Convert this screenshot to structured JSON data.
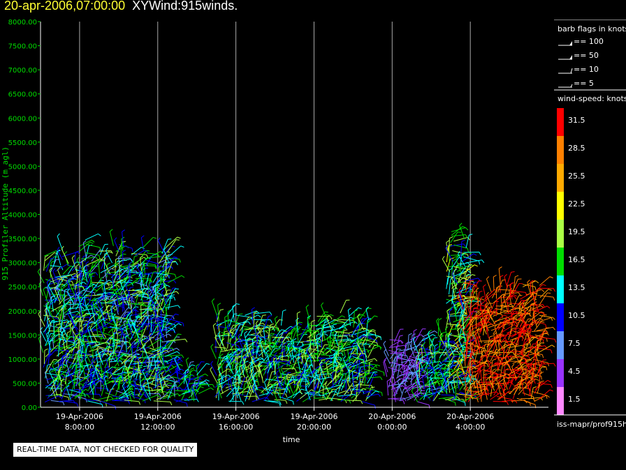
{
  "header": {
    "datetime": "20-apr-2006,07:00:00",
    "title": "XYWind:915winds."
  },
  "disclaimer": "REAL-TIME DATA, NOT CHECKED FOR QUALITY",
  "legend": {
    "barb_title": "barb flags in knots",
    "barbs": [
      {
        "label": "== 100",
        "value": 100
      },
      {
        "label": "== 50",
        "value": 50
      },
      {
        "label": "== 10",
        "value": 10
      },
      {
        "label": "== 5",
        "value": 5
      }
    ],
    "speed_title": "wind-speed: knots",
    "speed_bins": [
      {
        "label": "31.5",
        "color": "#ff0000"
      },
      {
        "label": "28.5",
        "color": "#ff8000"
      },
      {
        "label": "25.5",
        "color": "#ffaa00"
      },
      {
        "label": "22.5",
        "color": "#ffff00"
      },
      {
        "label": "19.5",
        "color": "#aaff44"
      },
      {
        "label": "16.5",
        "color": "#00dd00"
      },
      {
        "label": "13.5",
        "color": "#00ffff"
      },
      {
        "label": "10.5",
        "color": "#0000ff"
      },
      {
        "label": "7.5",
        "color": "#6699ff"
      },
      {
        "label": "4.5",
        "color": "#9933ff"
      },
      {
        "label": "1.5",
        "color": "#ff88ff"
      }
    ],
    "source": "iss-mapr/prof915h"
  },
  "chart_data": {
    "type": "scatter",
    "subtype": "wind-barb time-height",
    "title": "XYWind:915winds.",
    "xlabel": "time",
    "ylabel": "915 Profiler Altitude (m agl)",
    "ylim": [
      0,
      8000
    ],
    "xlim_hours_since_19apr_0600": [
      0,
      26.0
    ],
    "yticks": [
      "0.00",
      "500.00",
      "1000.00",
      "1500.00",
      "2000.00",
      "2500.00",
      "3000.00",
      "3500.00",
      "4000.00",
      "4500.00",
      "5000.00",
      "5500.00",
      "6000.00",
      "6500.00",
      "7000.00",
      "7500.00",
      "8000.00"
    ],
    "xticks": [
      {
        "line1": "19-Apr-2006",
        "line2": "8:00:00"
      },
      {
        "line1": "19-Apr-2006",
        "line2": "12:00:00"
      },
      {
        "line1": "19-Apr-2006",
        "line2": "16:00:00"
      },
      {
        "line1": "19-Apr-2006",
        "line2": "20:00:00"
      },
      {
        "line1": "20-Apr-2006",
        "line2": "0:00:00"
      },
      {
        "line1": "20-Apr-2006",
        "line2": "4:00:00"
      }
    ],
    "xtick_hours": [
      2,
      6,
      10,
      14,
      18,
      22
    ],
    "grid": "vertical",
    "data_segments": [
      {
        "t_start": 0.2,
        "t_end": 6.5,
        "z_top": 3300,
        "speed_knots": [
          8,
          20
        ]
      },
      {
        "t_start": 6.8,
        "t_end": 8.2,
        "z_top": 800,
        "speed_knots": [
          8,
          18
        ]
      },
      {
        "t_start": 9.0,
        "t_end": 16.8,
        "z_top": 1900,
        "speed_knots": [
          10,
          21
        ]
      },
      {
        "t_start": 17.8,
        "t_end": 19.3,
        "z_top": 1400,
        "speed_knots": [
          3,
          9
        ]
      },
      {
        "t_start": 19.3,
        "t_end": 20.8,
        "z_top": 1500,
        "speed_knots": [
          8,
          19
        ]
      },
      {
        "t_start": 20.8,
        "t_end": 21.7,
        "z_top": 3600,
        "speed_knots": [
          10,
          22
        ]
      },
      {
        "t_start": 21.7,
        "t_end": 25.6,
        "z_top": 2600,
        "speed_knots": [
          26,
          33
        ]
      }
    ]
  }
}
